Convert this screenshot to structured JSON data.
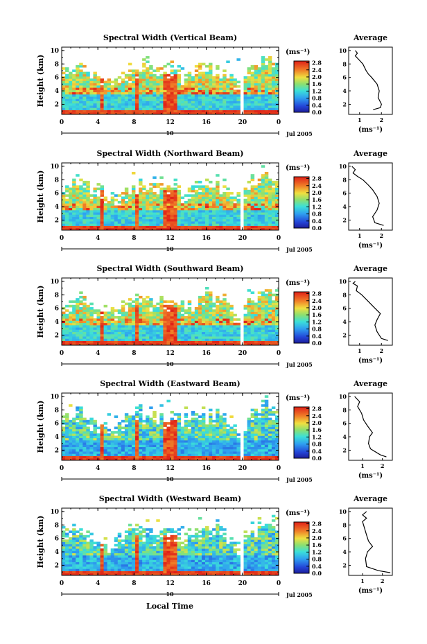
{
  "chart_data": {
    "type": "heatmap",
    "panels": [
      {
        "title": "Spectral Width (Vertical Beam)",
        "profile": [
          [
            1.62,
            1.2
          ],
          [
            1.95,
            1.5
          ],
          [
            2.0,
            2.0
          ],
          [
            1.85,
            3.0
          ],
          [
            1.9,
            4.0
          ],
          [
            1.8,
            5.0
          ],
          [
            1.55,
            6.0
          ],
          [
            1.4,
            6.5
          ],
          [
            1.3,
            7.0
          ],
          [
            1.15,
            8.0
          ],
          [
            0.95,
            8.7
          ],
          [
            0.8,
            9.2
          ],
          [
            0.9,
            9.6
          ],
          [
            0.8,
            10.0
          ]
        ],
        "profile_ticks": [
          "1",
          "2"
        ],
        "profile_xlim": [
          0.5,
          2.5
        ]
      },
      {
        "title": "Spectral Width (Northward Beam)",
        "profile": [
          [
            2.1,
            1.2
          ],
          [
            1.7,
            1.6
          ],
          [
            1.6,
            2.5
          ],
          [
            1.8,
            3.5
          ],
          [
            1.9,
            4.5
          ],
          [
            1.8,
            5.5
          ],
          [
            1.6,
            6.5
          ],
          [
            1.4,
            7.2
          ],
          [
            1.15,
            8.0
          ],
          [
            0.9,
            8.5
          ],
          [
            0.7,
            9.0
          ],
          [
            0.8,
            9.5
          ],
          [
            0.65,
            10.0
          ]
        ],
        "profile_ticks": [
          "1",
          "2"
        ],
        "profile_xlim": [
          0.5,
          2.5
        ]
      },
      {
        "title": "Spectral Width (Southward Beam)",
        "profile": [
          [
            2.3,
            1.2
          ],
          [
            2.0,
            1.5
          ],
          [
            1.8,
            2.5
          ],
          [
            1.7,
            3.5
          ],
          [
            1.8,
            4.3
          ],
          [
            1.95,
            5.2
          ],
          [
            1.7,
            6.0
          ],
          [
            1.4,
            7.0
          ],
          [
            1.1,
            8.0
          ],
          [
            0.85,
            8.6
          ],
          [
            0.9,
            9.3
          ],
          [
            0.7,
            9.7
          ],
          [
            0.8,
            10.0
          ]
        ],
        "profile_ticks": [
          "1",
          "2"
        ],
        "profile_xlim": [
          0.5,
          2.5
        ]
      },
      {
        "title": "Spectral Width (Eastward Beam)",
        "profile": [
          [
            2.2,
            1.0
          ],
          [
            1.9,
            1.3
          ],
          [
            1.4,
            2.2
          ],
          [
            1.3,
            3.0
          ],
          [
            1.35,
            4.0
          ],
          [
            1.5,
            4.6
          ],
          [
            1.25,
            5.6
          ],
          [
            1.05,
            6.5
          ],
          [
            0.95,
            7.5
          ],
          [
            0.75,
            8.5
          ],
          [
            0.85,
            9.2
          ],
          [
            0.6,
            10.0
          ]
        ],
        "profile_ticks": [
          "1",
          "2"
        ],
        "profile_xlim": [
          0.3,
          2.5
        ]
      },
      {
        "title": "Spectral Width (Westward Beam)",
        "profile": [
          [
            2.4,
            0.9
          ],
          [
            1.8,
            1.2
          ],
          [
            1.2,
            1.8
          ],
          [
            1.15,
            3.0
          ],
          [
            1.25,
            4.0
          ],
          [
            1.5,
            4.8
          ],
          [
            1.3,
            5.6
          ],
          [
            1.2,
            6.5
          ],
          [
            1.1,
            7.5
          ],
          [
            1.0,
            8.5
          ],
          [
            1.2,
            9.0
          ],
          [
            1.0,
            9.5
          ],
          [
            1.2,
            10.0
          ]
        ],
        "profile_ticks": [
          "1",
          "2"
        ],
        "profile_xlim": [
          0.3,
          2.5
        ]
      }
    ],
    "main_ylabel": "Height (km)",
    "yticks": [
      "2",
      "4",
      "6",
      "8",
      "10"
    ],
    "ylim": [
      0.5,
      10.5
    ],
    "xticks": [
      "0",
      "4",
      "8",
      "12",
      "16",
      "20",
      "0"
    ],
    "xlim": [
      0,
      24
    ],
    "day_label": "10",
    "date_label": "Jul 2005",
    "xlabel": "Local Time",
    "colorbar": {
      "unit": "(ms⁻¹)",
      "ticks": [
        "2.8",
        "2.4",
        "2.0",
        "1.6",
        "1.2",
        "0.8",
        "0.4",
        "0.0"
      ],
      "range": [
        0.0,
        2.9
      ]
    },
    "profile_title": "Average",
    "profile_unit": "(ms⁻¹)",
    "profile_yticks": [
      "2",
      "4",
      "6",
      "8",
      "10"
    ]
  }
}
